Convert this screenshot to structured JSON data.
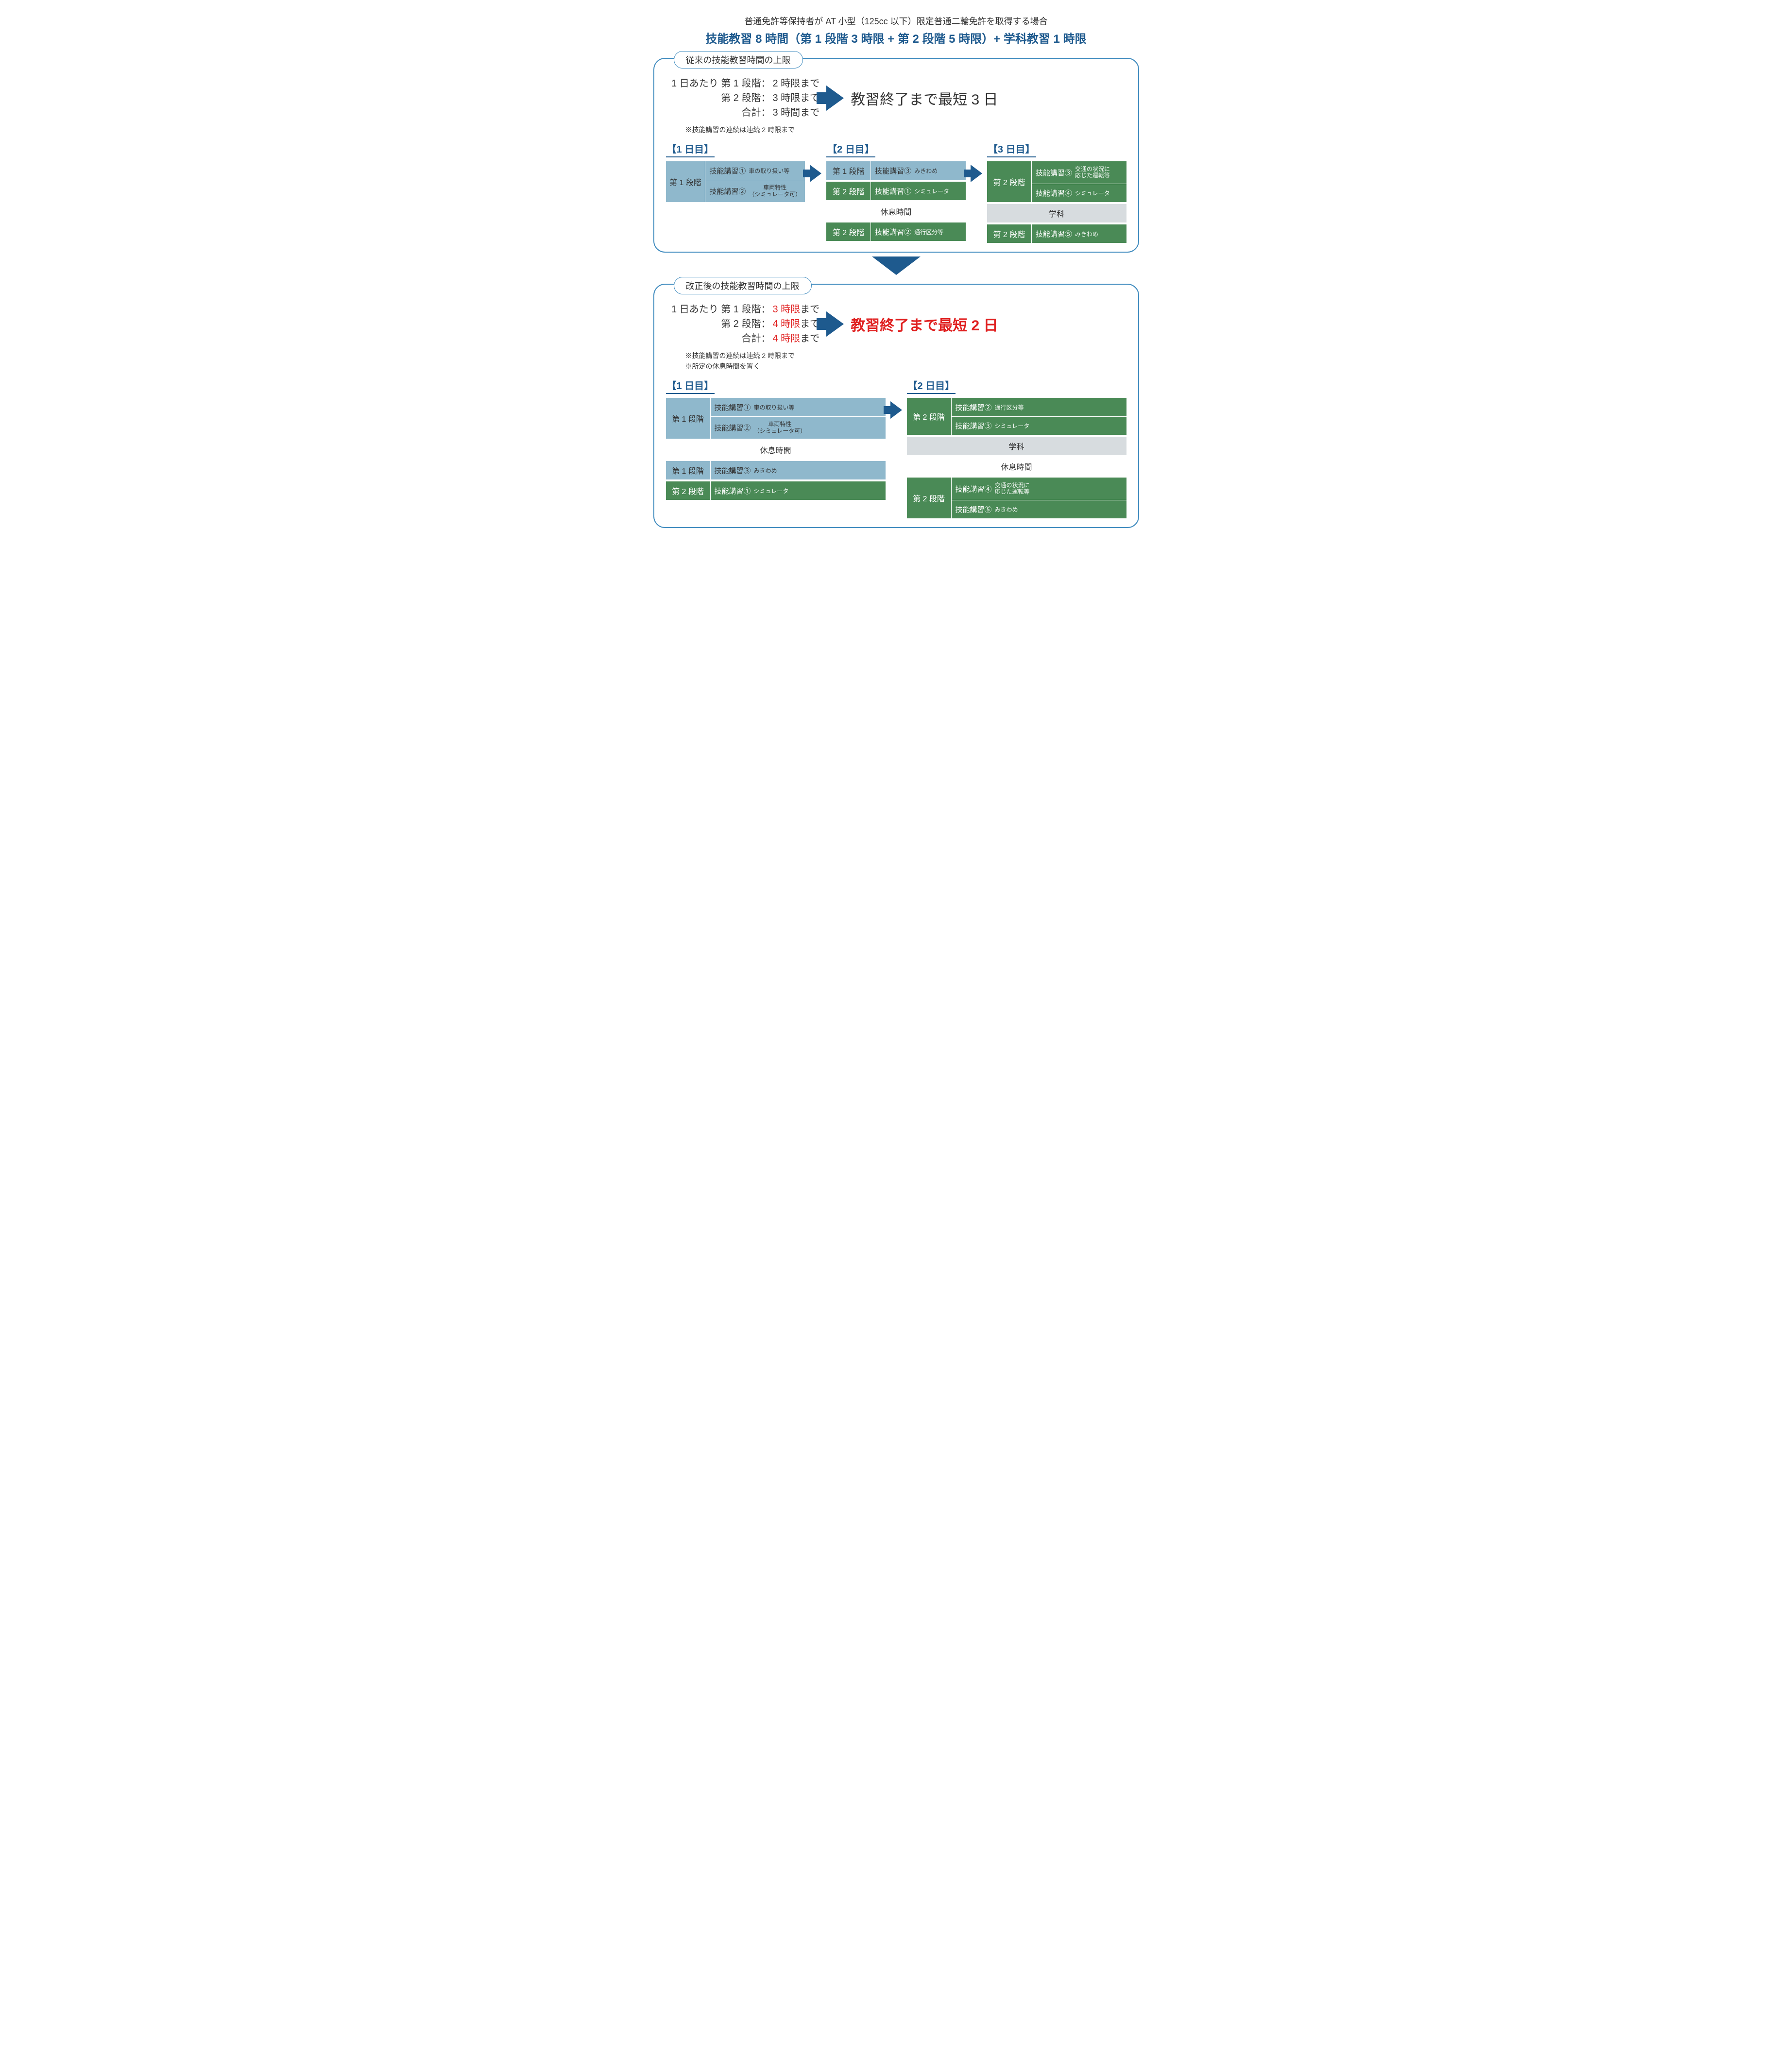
{
  "colors": {
    "accent": "#1e5a8e",
    "border": "#418cbf",
    "stage1_bg": "#8fb8cc",
    "stage1_text": "#333333",
    "stage2_bg": "#4a8a56",
    "stage2_text": "#ffffff",
    "break_bg": "#ffffff",
    "gakka_bg": "#d7dcdf",
    "highlight": "#e02020"
  },
  "header": {
    "subtitle": "普通免許等保持者が AT 小型（125cc 以下）限定普通二輪免許を取得する場合",
    "title": "技能教習 8 時間（第 1 段階 3 時限 + 第 2 段階 5 時限）+ 学科教習 1 時限"
  },
  "panels": [
    {
      "title": "従来の技能教習時間の上限",
      "limits": {
        "intro": "1 日あたり",
        "lines": [
          {
            "prefix": "第 1 段階：",
            "value": "2 時限",
            "suffix": "まで",
            "highlight": false
          },
          {
            "prefix": "第 2 段階：",
            "value": "3 時限",
            "suffix": "まで",
            "highlight": false
          },
          {
            "prefix": "合計：",
            "value": "3 時間",
            "suffix": "まで",
            "highlight": false
          }
        ],
        "notes": [
          "※技能講習の連続は連続 2 時限まで"
        ]
      },
      "result": {
        "text": "教習終了まで最短 3 日",
        "highlight": false
      },
      "days": [
        {
          "title": "【1 日目】",
          "rows": [
            {
              "type": "group",
              "stage": 1,
              "lessons": [
                {
                  "main": "技能講習①",
                  "sub": "車の取り扱い等"
                },
                {
                  "main": "技能講習②",
                  "sub": "車両特性\n（シミュレータ可）"
                }
              ]
            }
          ]
        },
        {
          "title": "【2 日目】",
          "rows": [
            {
              "type": "single",
              "stage": 1,
              "lesson": {
                "main": "技能講習③",
                "sub": "みきわめ"
              }
            },
            {
              "type": "single",
              "stage": 2,
              "lesson": {
                "main": "技能講習①",
                "sub": "シミュレータ"
              }
            },
            {
              "type": "break",
              "label": "休息時間"
            },
            {
              "type": "single",
              "stage": 2,
              "lesson": {
                "main": "技能講習②",
                "sub": "通行区分等"
              }
            }
          ]
        },
        {
          "title": "【3 日目】",
          "rows": [
            {
              "type": "group",
              "stage": 2,
              "lessons": [
                {
                  "main": "技能講習③",
                  "sub": "交通の状況に\n応じた運転等"
                },
                {
                  "main": "技能講習④",
                  "sub": "シミュレータ"
                }
              ]
            },
            {
              "type": "gakka",
              "label": "学科"
            },
            {
              "type": "single",
              "stage": 2,
              "lesson": {
                "main": "技能講習⑤",
                "sub": "みきわめ"
              }
            }
          ]
        }
      ]
    },
    {
      "title": "改正後の技能教習時間の上限",
      "limits": {
        "intro": "1 日あたり",
        "lines": [
          {
            "prefix": "第 1 段階：",
            "value": "3 時限",
            "suffix": "まで",
            "highlight": true
          },
          {
            "prefix": "第 2 段階：",
            "value": "4 時限",
            "suffix": "まで",
            "highlight": true
          },
          {
            "prefix": "合計：",
            "value": "4 時限",
            "suffix": "まで",
            "highlight": true
          }
        ],
        "notes": [
          "※技能講習の連続は連続 2 時限まで",
          "※所定の休息時間を置く"
        ]
      },
      "result": {
        "text": "教習終了まで最短 2 日",
        "highlight": true
      },
      "days": [
        {
          "title": "【1 日目】",
          "rows": [
            {
              "type": "group",
              "stage": 1,
              "lessons": [
                {
                  "main": "技能講習①",
                  "sub": "車の取り扱い等"
                },
                {
                  "main": "技能講習②",
                  "sub": "車両特性\n（シミュレータ可）"
                }
              ]
            },
            {
              "type": "break",
              "label": "休息時間"
            },
            {
              "type": "single",
              "stage": 1,
              "lesson": {
                "main": "技能講習③",
                "sub": "みきわめ"
              }
            },
            {
              "type": "single",
              "stage": 2,
              "lesson": {
                "main": "技能講習①",
                "sub": "シミュレータ"
              }
            }
          ]
        },
        {
          "title": "【2 日目】",
          "rows": [
            {
              "type": "group",
              "stage": 2,
              "lessons": [
                {
                  "main": "技能講習②",
                  "sub": "通行区分等"
                },
                {
                  "main": "技能講習③",
                  "sub": "シミュレータ"
                }
              ]
            },
            {
              "type": "gakka",
              "label": "学科"
            },
            {
              "type": "break",
              "label": "休息時間"
            },
            {
              "type": "group",
              "stage": 2,
              "lessons": [
                {
                  "main": "技能講習④",
                  "sub": "交通の状況に\n応じた運転等"
                },
                {
                  "main": "技能講習⑤",
                  "sub": "みきわめ"
                }
              ]
            }
          ]
        }
      ]
    }
  ],
  "labels": {
    "stage1": "第 1 段階",
    "stage2": "第 2 段階"
  }
}
